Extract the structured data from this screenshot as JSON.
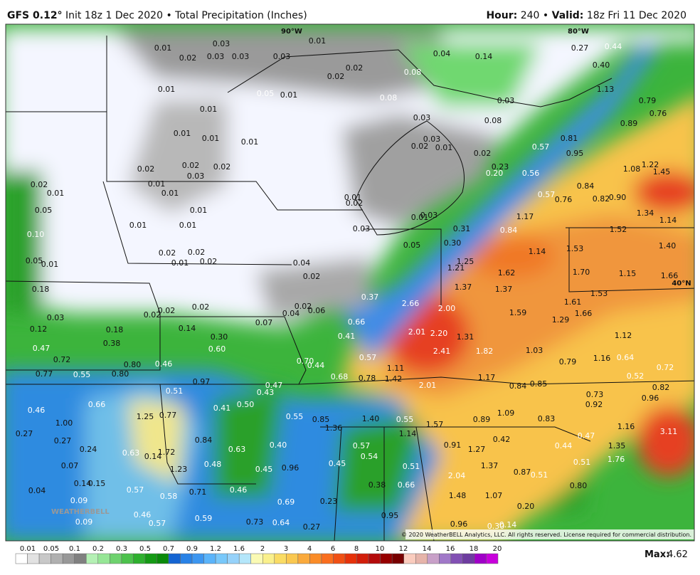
{
  "header": {
    "model": "GFS 0.12°",
    "info": "Init 18z 1 Dec 2020",
    "separator": "•",
    "product": "Total Precipitation (Inches)",
    "hour_label": "Hour:",
    "hour": "240",
    "valid_label": "Valid:",
    "valid": "18z Fri 11 Dec 2020"
  },
  "map": {
    "grid_labels": [
      "90°W",
      "80°W",
      "40°N"
    ],
    "watermark": "WEATHERBELL",
    "copyright": "© 2020 WeatherBELL Analytics, LLC. All rights reserved. License required for commercial distribution.",
    "values": [
      "0.01",
      "0.02",
      "0.03",
      "0.03",
      "0.03",
      "0.03",
      "0.01",
      "0.04",
      "0.14",
      "0.27",
      "0.44",
      "0.02",
      "0.02",
      "0.08",
      "0.40",
      "0.01",
      "0.05",
      "0.01",
      "0.08",
      "0.03",
      "1.13",
      "0.79",
      "0.01",
      "0.03",
      "0.08",
      "0.76",
      "0.89",
      "0.01",
      "0.01",
      "0.01",
      "0.03",
      "0.02",
      "0.01",
      "0.81",
      "0.02",
      "0.57",
      "0.95",
      "0.02",
      "0.02",
      "0.03",
      "0.02",
      "0.23",
      "0.20",
      "0.56",
      "1.08",
      "1.22",
      "1.45",
      "0.02",
      "0.01",
      "0.01",
      "0.01",
      "0.84",
      "0.57",
      "0.76",
      "0.82",
      "0.90",
      "0.01",
      "0.02",
      "0.05",
      "0.01",
      "1.34",
      "1.17",
      "1.14",
      "0.01",
      "0.01",
      "0.03",
      "0.01",
      "0.03",
      "0.31",
      "0.84",
      "1.52",
      "0.10",
      "0.05",
      "0.30",
      "1.53",
      "1.40",
      "1.14",
      "0.02",
      "0.02",
      "0.05",
      "0.01",
      "0.01",
      "0.02",
      "0.04",
      "1.25",
      "1.21",
      "1.62",
      "1.70",
      "1.15",
      "1.66",
      "0.02",
      "0.18",
      "1.37",
      "1.37",
      "1.53",
      "1.61",
      "0.37",
      "2.66",
      "2.00",
      "1.59",
      "1.66",
      "0.02",
      "0.06",
      "0.02",
      "0.02",
      "0.02",
      "0.04",
      "0.03",
      "1.29",
      "0.07",
      "0.66",
      "0.12",
      "0.18",
      "0.14",
      "0.30",
      "0.41",
      "2.20",
      "1.31",
      "1.12",
      "2.01",
      "0.38",
      "0.47",
      "0.60",
      "2.41",
      "1.82",
      "1.03",
      "0.57",
      "1.16",
      "0.64",
      "0.72",
      "0.80",
      "0.46",
      "0.70",
      "0.44",
      "0.79",
      "0.72",
      "1.11",
      "0.77",
      "0.55",
      "0.80",
      "0.68",
      "0.78",
      "1.42",
      "1.17",
      "0.52",
      "0.97",
      "0.47",
      "2.01",
      "0.84",
      "0.85",
      "0.82",
      "0.51",
      "0.43",
      "0.73",
      "0.96",
      "0.50",
      "0.41",
      "0.46",
      "0.66",
      "0.92",
      "1.25",
      "0.77",
      "0.55",
      "0.85",
      "1.40",
      "0.55",
      "0.89",
      "1.09",
      "0.83",
      "1.00",
      "1.36",
      "1.57",
      "1.16",
      "1.14",
      "0.27",
      "0.27",
      "0.84",
      "0.42",
      "0.47",
      "3.11",
      "0.40",
      "0.57",
      "0.91",
      "1.27",
      "0.44",
      "1.35",
      "0.24",
      "0.63",
      "0.14",
      "1.72",
      "0.63",
      "0.54",
      "1.76",
      "0.51",
      "0.48",
      "0.45",
      "0.96",
      "0.45",
      "0.51",
      "1.37",
      "0.87",
      "0.51",
      "0.07",
      "1.23",
      "2.04",
      "0.14",
      "0.15",
      "0.38",
      "0.66",
      "0.80",
      "0.04",
      "0.71",
      "0.46",
      "0.57",
      "1.48",
      "1.07",
      "0.58",
      "0.09",
      "0.69",
      "0.23",
      "0.20",
      "0.46",
      "0.59",
      "0.95",
      "0.73",
      "0.64",
      "0.57",
      "0.09",
      "0.27",
      "0.96",
      "0.30",
      "0.14"
    ]
  },
  "legend": {
    "labels": [
      "0.01",
      "0.05",
      "0.1",
      "0.2",
      "0.3",
      "0.5",
      "0.7",
      "0.9",
      "1.2",
      "1.6",
      "2",
      "3",
      "4",
      "6",
      "8",
      "10",
      "12",
      "14",
      "16",
      "18",
      "20"
    ],
    "max_label": "Max:",
    "max_value": "4.62"
  }
}
